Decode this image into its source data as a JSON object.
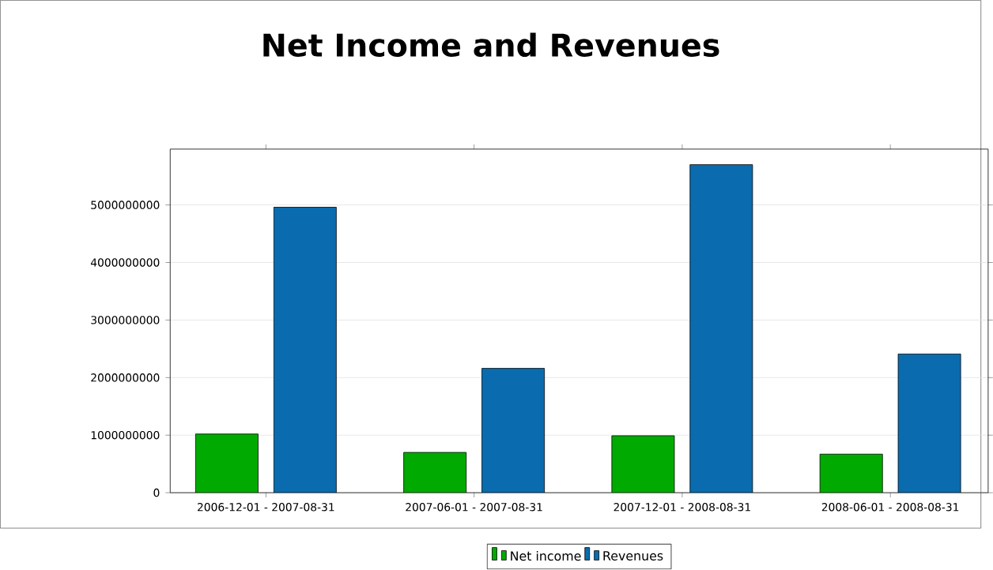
{
  "chart_data": {
    "type": "bar",
    "title": "Net Income and Revenues",
    "categories": [
      "2006-12-01 - 2007-08-31",
      "2007-06-01 - 2007-08-31",
      "2007-12-01 - 2008-08-31",
      "2008-06-01 - 2008-08-31"
    ],
    "series": [
      {
        "name": "Net income",
        "color": "#00aa00",
        "values": [
          1020000000,
          700000000,
          990000000,
          670000000
        ]
      },
      {
        "name": "Revenues",
        "color": "#0a6cae",
        "values": [
          4960000000,
          2160000000,
          5700000000,
          2410000000
        ]
      }
    ],
    "ylim": [
      0,
      5970000000
    ],
    "yticks": [
      0,
      1000000000,
      2000000000,
      3000000000,
      4000000000,
      5000000000
    ],
    "grid": "y",
    "legend": "bottom"
  }
}
